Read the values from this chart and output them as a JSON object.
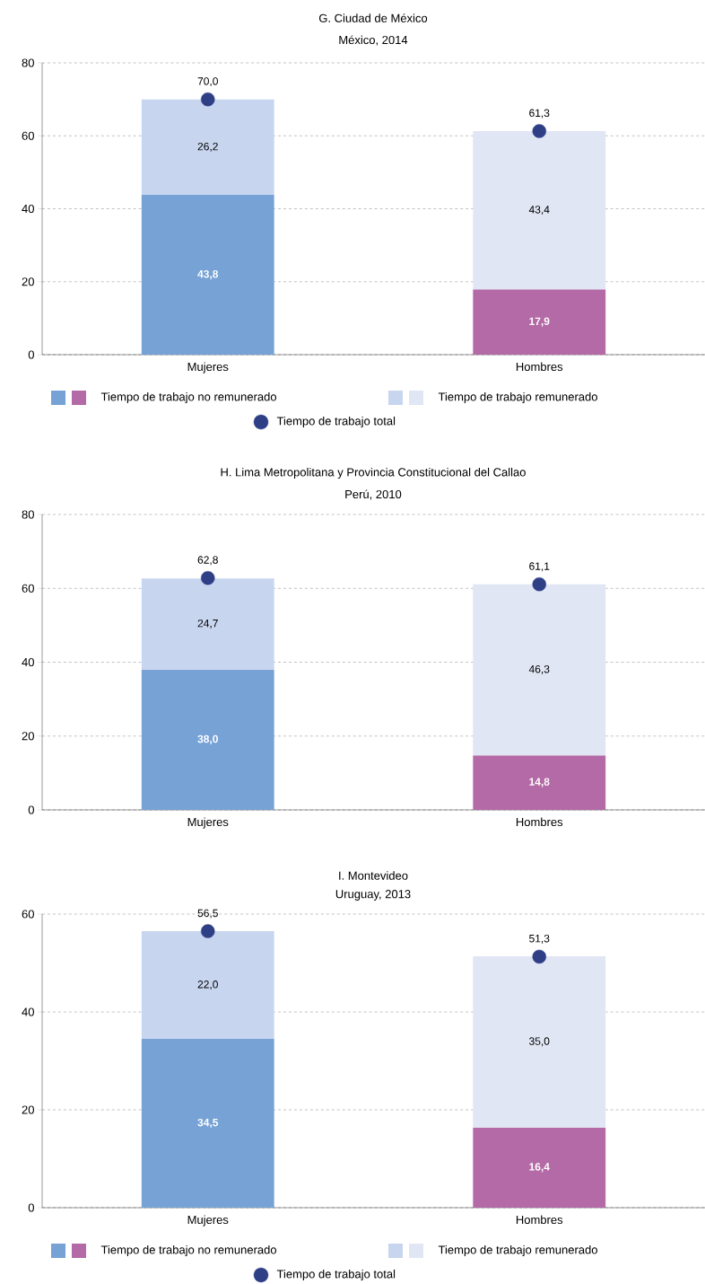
{
  "chart_data": [
    {
      "type": "bar",
      "stacked": true,
      "title": "G. Ciudad de México",
      "subtitle": "México, 2014",
      "categories": [
        "Mujeres",
        "Hombres"
      ],
      "ylim": [
        0,
        80
      ],
      "yticks": [
        0,
        20,
        40,
        60,
        80
      ],
      "grid": "y",
      "legend": "bottom",
      "series": [
        {
          "name": "Tiempo de trabajo no remunerado",
          "colors": [
            "#77a2d6",
            "#b46aa6"
          ],
          "values": [
            43.8,
            17.9
          ],
          "value_labels": [
            "43,8",
            "17,9"
          ]
        },
        {
          "name": "Tiempo de trabajo remunerado",
          "colors": [
            "#c8d5ef",
            "#e1e6f5"
          ],
          "values": [
            26.2,
            43.4
          ],
          "value_labels": [
            "26,2",
            "43,4"
          ]
        },
        {
          "name": "Tiempo de trabajo total",
          "type": "scatter",
          "marker": "circle",
          "color": "#2f3f86",
          "values": [
            70.0,
            61.3
          ],
          "value_labels": [
            "70,0",
            "61,3"
          ]
        }
      ]
    },
    {
      "type": "bar",
      "stacked": true,
      "title": "H. Lima Metropolitana y Provincia Constitucional del Callao",
      "subtitle": "Perú, 2010",
      "categories": [
        "Mujeres",
        "Hombres"
      ],
      "ylim": [
        0,
        80
      ],
      "yticks": [
        0,
        20,
        40,
        60,
        80
      ],
      "grid": "y",
      "series": [
        {
          "colors": [
            "#77a2d6",
            "#b46aa6"
          ],
          "values": [
            38.0,
            14.8
          ],
          "value_labels": [
            "38,0",
            "14,8"
          ]
        },
        {
          "colors": [
            "#c8d5ef",
            "#e1e6f5"
          ],
          "values": [
            24.7,
            46.3
          ],
          "value_labels": [
            "24,7",
            "46,3"
          ]
        },
        {
          "type": "scatter",
          "marker": "circle",
          "color": "#2f3f86",
          "values": [
            62.8,
            61.1
          ],
          "value_labels": [
            "62,8",
            "61,1"
          ]
        }
      ]
    },
    {
      "type": "bar",
      "stacked": true,
      "title": "I. Montevideo",
      "subtitle": "Uruguay, 2013",
      "categories": [
        "Mujeres",
        "Hombres"
      ],
      "ylim": [
        0,
        60
      ],
      "yticks": [
        0,
        20,
        40,
        60
      ],
      "grid": "y",
      "legend": "bottom",
      "series": [
        {
          "name": "Tiempo de trabajo no remunerado",
          "colors": [
            "#77a2d6",
            "#b46aa6"
          ],
          "values": [
            34.5,
            16.4
          ],
          "value_labels": [
            "34,5",
            "16,4"
          ]
        },
        {
          "name": "Tiempo de trabajo remunerado",
          "colors": [
            "#c8d5ef",
            "#e1e6f5"
          ],
          "values": [
            22.0,
            35.0
          ],
          "value_labels": [
            "22,0",
            "35,0"
          ]
        },
        {
          "name": "Tiempo de trabajo total",
          "type": "scatter",
          "marker": "circle",
          "color": "#2f3f86",
          "values": [
            56.5,
            51.3
          ],
          "value_labels": [
            "56,5",
            "51,3"
          ]
        }
      ]
    }
  ]
}
